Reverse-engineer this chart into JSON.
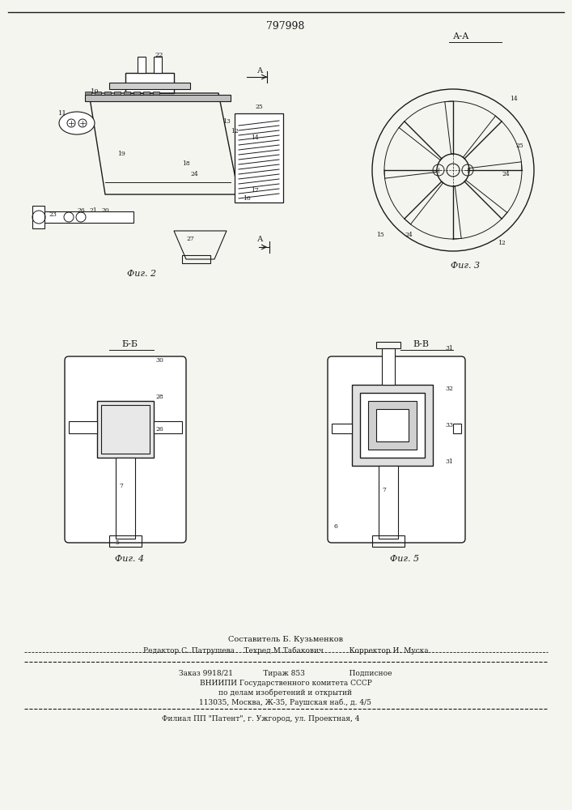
{
  "patent_number": "797998",
  "background_color": "#f5f5f0",
  "line_color": "#1a1a1a",
  "fig2_caption": "Фиг. 2",
  "fig3_caption": "Фиг. 3",
  "fig4_caption": "Фиг. 4",
  "fig5_caption": "Фиг. 5",
  "section_aa": "А-А",
  "section_bb": "Б-Б",
  "section_vv": "В-В",
  "footer_line1": "Составитель Б. Кузьменков",
  "footer_line2": "Редактор С. Патрушева    Техред М.Табакович           Корректор И. Муска",
  "footer_line3": "Заказ 9918/21             Тираж 853                   Подписное",
  "footer_line4": "ВНИИПИ Государственного комитета СССР",
  "footer_line5": "по делам изобретений и открытий",
  "footer_line6": "113035, Москва, Ж-35, Раушская наб., д. 4/5",
  "footer_line7": "Филиал ПП \"Патент\", г. Ужгород, ул. Проектная, 4"
}
